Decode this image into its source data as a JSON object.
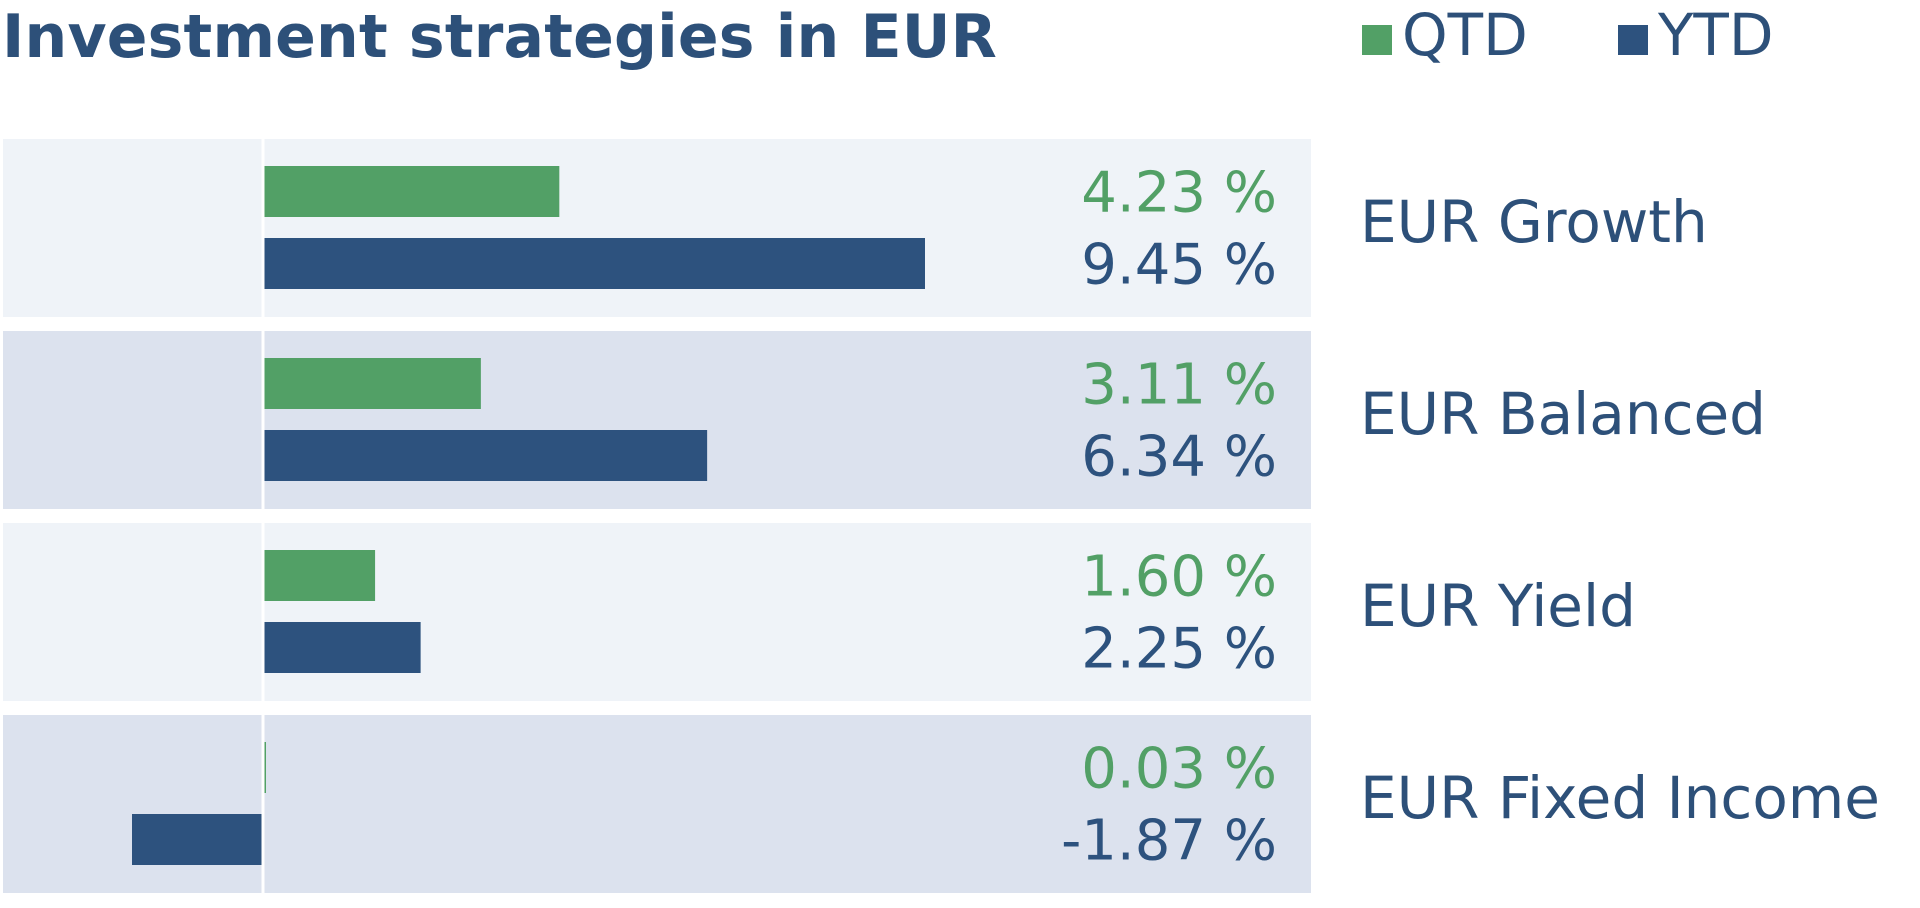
{
  "chart_data": {
    "type": "bar",
    "orientation": "horizontal",
    "title": "Investment strategies in EUR",
    "categories": [
      "EUR Growth",
      "EUR Balanced",
      "EUR Yield",
      "EUR Fixed Income"
    ],
    "series": [
      {
        "name": "QTD",
        "values": [
          4.23,
          3.11,
          1.6,
          0.03
        ],
        "labels": [
          "4.23 %",
          "3.11 %",
          "1.60 %",
          "0.03 %"
        ],
        "color": "#52a066"
      },
      {
        "name": "YTD",
        "values": [
          9.45,
          6.34,
          2.25,
          -1.87
        ],
        "labels": [
          "9.45 %",
          "6.34 %",
          "2.25 %",
          "-1.87 %"
        ],
        "color": "#2d527e"
      }
    ],
    "xlim": [
      -3.75,
      12
    ],
    "unit": "%",
    "legend_position": "top-right",
    "grid": false,
    "row_colors": [
      "#eff3f8",
      "#dce2ee"
    ],
    "title_color": "#2d5079",
    "label_color": "#2d5079"
  }
}
